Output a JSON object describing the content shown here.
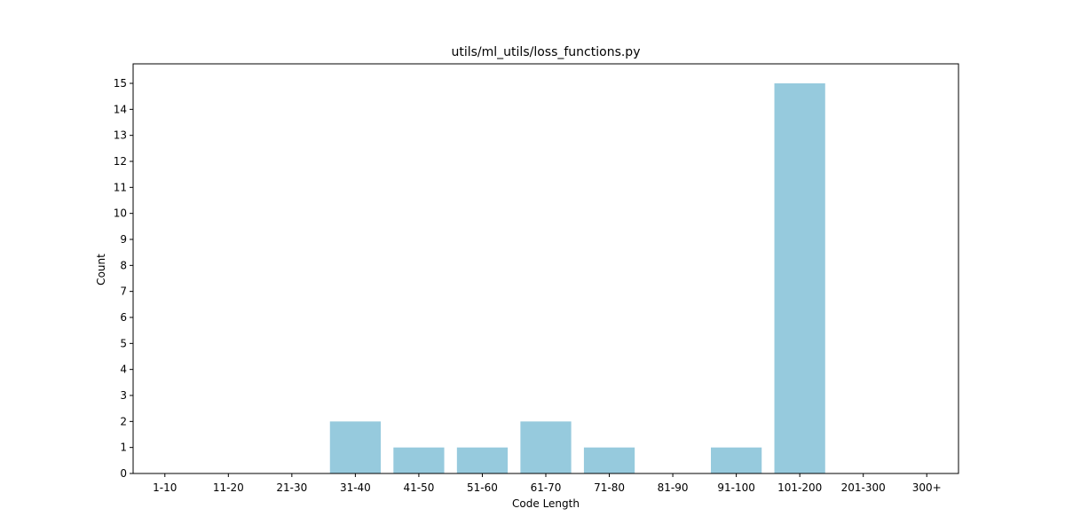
{
  "chart_data": {
    "type": "bar",
    "title": "utils/ml_utils/loss_functions.py",
    "xlabel": "Code Length",
    "ylabel": "Count",
    "categories": [
      "1-10",
      "11-20",
      "21-30",
      "31-40",
      "41-50",
      "51-60",
      "61-70",
      "71-80",
      "81-90",
      "91-100",
      "101-200",
      "201-300",
      "300+"
    ],
    "values": [
      0,
      0,
      0,
      2,
      1,
      1,
      2,
      1,
      0,
      1,
      15,
      0,
      0
    ],
    "ylim": [
      0,
      15.75
    ],
    "yticks": [
      0,
      1,
      2,
      3,
      4,
      5,
      6,
      7,
      8,
      9,
      10,
      11,
      12,
      13,
      14,
      15
    ],
    "bar_color": "#96cadd",
    "grid": false,
    "legend": "none"
  }
}
